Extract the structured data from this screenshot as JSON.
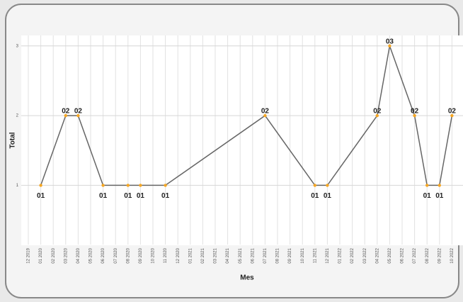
{
  "chart_data": {
    "type": "line",
    "xlabel": "Mes",
    "ylabel": "Total",
    "categories": [
      "12 2019",
      "01 2020",
      "02 2020",
      "03 2020",
      "04 2020",
      "05 2020",
      "06 2020",
      "07 2020",
      "08 2020",
      "09 2020",
      "10 2020",
      "11 2020",
      "12 2020",
      "01 2021",
      "02 2021",
      "03 2021",
      "04 2021",
      "05 2021",
      "06 2021",
      "07 2021",
      "08 2021",
      "09 2021",
      "10 2021",
      "11 2021",
      "12 2021",
      "01 2022",
      "02 2022",
      "03 2022",
      "04 2022",
      "05 2022",
      "06 2022",
      "07 2022",
      "08 2022",
      "09 2022",
      "10 2022"
    ],
    "series": [
      {
        "color": "#666666",
        "marker_color": "#f5a623",
        "x": [
          "01 2020",
          "03 2020",
          "04 2020",
          "06 2020",
          "08 2020",
          "09 2020",
          "11 2020",
          "07 2021",
          "11 2021",
          "12 2021",
          "04 2022",
          "05 2022",
          "07 2022",
          "08 2022",
          "09 2022",
          "10 2022"
        ],
        "values": [
          1,
          2,
          2,
          1,
          1,
          1,
          1,
          2,
          1,
          1,
          2,
          3,
          2,
          1,
          1,
          2
        ],
        "value_labels": [
          "01",
          "02",
          "02",
          "01",
          "01",
          "01",
          "01",
          "02",
          "01",
          "01",
          "02",
          "03",
          "02",
          "01",
          "01",
          "02"
        ]
      }
    ],
    "ylim": [
      0.15,
      3.15
    ],
    "yticks": [
      1,
      2,
      3
    ],
    "grid": true
  }
}
